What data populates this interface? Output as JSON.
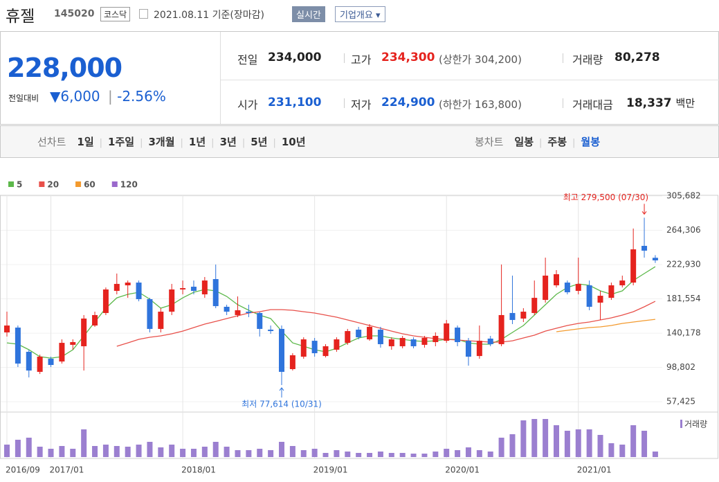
{
  "header": {
    "title": "휴젤",
    "code": "145020",
    "market": "코스닥",
    "date": "2021.08.11 기준(장마감)",
    "realtime": "실시간",
    "company": "기업개요"
  },
  "quote": {
    "price": "228,000",
    "change_label": "전일대비",
    "change": "6,000",
    "change_rate": "-2.56%",
    "rows": [
      [
        {
          "label": "전일",
          "value": "234,000"
        },
        {
          "label": "고가",
          "value": "234,300",
          "note_label": "(상한가",
          "note_value": "304,200)"
        },
        {
          "label": "거래량",
          "value": "80,278"
        }
      ],
      [
        {
          "label": "시가",
          "value": "231,100"
        },
        {
          "label": "저가",
          "value": "224,900",
          "note_label": "(하한가",
          "note_value": "163,800)"
        },
        {
          "label": "거래대금",
          "value": "18,337",
          "unit": "백만"
        }
      ]
    ]
  },
  "period_bar": {
    "line_label": "선차트",
    "line_periods": [
      "1일",
      "1주일",
      "3개월",
      "1년",
      "3년",
      "5년",
      "10년"
    ],
    "candle_label": "봉차트",
    "candle_periods": [
      "일봉",
      "주봉",
      "월봉"
    ]
  },
  "chart_data": {
    "type": "candlestick",
    "categories": [
      "2016/09",
      null,
      null,
      null,
      "2017/01",
      null,
      null,
      null,
      null,
      null,
      null,
      null,
      null,
      null,
      null,
      null,
      "2018/01",
      null,
      null,
      null,
      null,
      null,
      null,
      null,
      null,
      null,
      null,
      null,
      "2019/01",
      null,
      null,
      null,
      null,
      null,
      null,
      null,
      null,
      null,
      null,
      null,
      "2020/01",
      null,
      null,
      null,
      null,
      null,
      null,
      null,
      null,
      null,
      null,
      null,
      "2021/01",
      null,
      null,
      null,
      null,
      null,
      null,
      null
    ],
    "open": [
      141100,
      146900,
      117700,
      93500,
      109300,
      106000,
      126100,
      124400,
      149400,
      164500,
      191200,
      197900,
      201200,
      181200,
      145300,
      166100,
      192900,
      196200,
      187000,
      205400,
      172000,
      162000,
      166100,
      164500,
      144400,
      145300,
      96800,
      111800,
      131000,
      112600,
      120200,
      128500,
      144400,
      132700,
      144400,
      124400,
      124400,
      132700,
      126100,
      129400,
      131000,
      146900,
      131000,
      112600,
      133600,
      126900,
      164500,
      157800,
      164500,
      180300,
      197900,
      201200,
      191200,
      197900,
      177000,
      182800,
      197900,
      201200,
      245500,
      231100
    ],
    "high": [
      166100,
      149400,
      120200,
      114300,
      111800,
      132700,
      132700,
      162000,
      166100,
      195300,
      212100,
      203700,
      203700,
      182800,
      170300,
      199600,
      203700,
      203700,
      207900,
      223000,
      174500,
      184500,
      174500,
      166100,
      149400,
      149400,
      116000,
      135200,
      134400,
      126900,
      135200,
      145300,
      147800,
      151100,
      147800,
      135200,
      136900,
      135200,
      136900,
      141100,
      156100,
      149400,
      134400,
      149400,
      136900,
      223000,
      209600,
      170300,
      203700,
      231300,
      216300,
      203700,
      231300,
      203700,
      191200,
      201200,
      209600,
      266400,
      279500,
      234300
    ],
    "low": [
      136100,
      99300,
      86800,
      90900,
      99300,
      103500,
      120200,
      95100,
      147800,
      162000,
      187000,
      182800,
      178600,
      141100,
      141100,
      162000,
      187000,
      187000,
      182800,
      170300,
      162000,
      159500,
      159500,
      136100,
      139400,
      77614,
      95100,
      109300,
      111800,
      110900,
      117700,
      126100,
      132700,
      131000,
      122700,
      120200,
      121900,
      121900,
      122700,
      124400,
      128500,
      124400,
      101000,
      109300,
      124400,
      124400,
      151100,
      153600,
      162000,
      177000,
      195300,
      187000,
      187000,
      167800,
      156100,
      180300,
      195300,
      197900,
      231300,
      224900
    ],
    "close": [
      149400,
      103500,
      95100,
      111800,
      101800,
      128500,
      129400,
      157800,
      162000,
      192900,
      199600,
      201200,
      181200,
      145300,
      166100,
      192900,
      194500,
      191200,
      203700,
      172800,
      166100,
      167800,
      164500,
      145300,
      142700,
      93500,
      113500,
      132700,
      116000,
      124400,
      132700,
      142700,
      135200,
      147800,
      126900,
      132700,
      134400,
      124400,
      134400,
      136900,
      151900,
      129400,
      111800,
      131000,
      126900,
      162000,
      156100,
      166100,
      182800,
      209600,
      211300,
      189500,
      199600,
      172000,
      185300,
      197900,
      203700,
      241300,
      239700,
      228000
    ],
    "up_color": "#e5231e",
    "down_color": "#2f74dc",
    "ylim": [
      45000,
      306500
    ],
    "yticks": [
      {
        "value": 305682,
        "label": "305,682"
      },
      {
        "value": 264306,
        "label": "264,306"
      },
      {
        "value": 222930,
        "label": "222,930"
      },
      {
        "value": 181554,
        "label": "181,554"
      },
      {
        "value": 140178,
        "label": "140,178"
      },
      {
        "value": 98802,
        "label": "98,802"
      },
      {
        "value": 57425,
        "label": "57,425"
      }
    ],
    "grid": true,
    "series": [
      {
        "name": "5",
        "color": "#5cb84a",
        "values": [
          128500,
          126900,
          120200,
          111800,
          110100,
          111800,
          120200,
          136900,
          153600,
          170300,
          182800,
          187000,
          189500,
          181200,
          170300,
          174500,
          182800,
          189500,
          192900,
          191200,
          184500,
          174500,
          167800,
          162000,
          157800,
          142700,
          128500,
          124400,
          120200,
          117700,
          121900,
          128500,
          134400,
          136900,
          136900,
          134400,
          132700,
          131000,
          130200,
          131000,
          132700,
          132700,
          128500,
          126900,
          126900,
          132700,
          141100,
          149400,
          162000,
          174500,
          187000,
          195300,
          199600,
          197900,
          191200,
          187000,
          191200,
          203700,
          212100,
          220400
        ]
      },
      {
        "name": "20",
        "color": "#e8504a",
        "values": [
          null,
          null,
          null,
          null,
          null,
          null,
          null,
          null,
          null,
          null,
          124400,
          128500,
          132700,
          135200,
          136900,
          139400,
          142700,
          146900,
          151100,
          154400,
          157800,
          161100,
          164500,
          166100,
          168600,
          168600,
          167800,
          166100,
          164500,
          162000,
          159500,
          156100,
          152800,
          149400,
          146100,
          142700,
          139400,
          136900,
          135200,
          133600,
          132700,
          131900,
          131000,
          130200,
          129400,
          129400,
          131000,
          134400,
          137700,
          142700,
          146100,
          149400,
          151900,
          153600,
          156100,
          158600,
          162000,
          166100,
          172000,
          178600
        ]
      },
      {
        "name": "60",
        "color": "#f39a2e",
        "values": [
          null,
          null,
          null,
          null,
          null,
          null,
          null,
          null,
          null,
          null,
          null,
          null,
          null,
          null,
          null,
          null,
          null,
          null,
          null,
          null,
          null,
          null,
          null,
          null,
          null,
          null,
          null,
          null,
          null,
          null,
          null,
          null,
          null,
          null,
          null,
          null,
          null,
          null,
          null,
          null,
          null,
          null,
          null,
          null,
          null,
          null,
          null,
          null,
          null,
          null,
          141900,
          143600,
          145300,
          146900,
          147800,
          149400,
          151900,
          153600,
          155300,
          156900
        ]
      },
      {
        "name": "120",
        "color": "#9a68cc",
        "values": [
          null,
          null,
          null,
          null,
          null,
          null,
          null,
          null,
          null,
          null,
          null,
          null,
          null,
          null,
          null,
          null,
          null,
          null,
          null,
          null,
          null,
          null,
          null,
          null,
          null,
          null,
          null,
          null,
          null,
          null,
          null,
          null,
          null,
          null,
          null,
          null,
          null,
          null,
          null,
          null,
          null,
          null,
          null,
          null,
          null,
          null,
          null,
          null,
          null,
          null,
          null,
          null,
          null,
          null,
          null,
          null,
          null,
          null,
          null,
          null
        ]
      }
    ],
    "volume": {
      "name": "거래량",
      "color": "#9b7fd0",
      "values": [
        180000,
        250000,
        280000,
        150000,
        120000,
        160000,
        120000,
        400000,
        160000,
        180000,
        160000,
        150000,
        180000,
        220000,
        140000,
        180000,
        120000,
        120000,
        150000,
        220000,
        150000,
        100000,
        100000,
        120000,
        100000,
        220000,
        160000,
        100000,
        120000,
        60000,
        100000,
        80000,
        60000,
        60000,
        80000,
        60000,
        60000,
        50000,
        50000,
        80000,
        120000,
        100000,
        140000,
        100000,
        80000,
        280000,
        330000,
        530000,
        550000,
        550000,
        460000,
        380000,
        400000,
        400000,
        320000,
        200000,
        180000,
        460000,
        380000,
        80000
      ]
    },
    "annotations": [
      {
        "text": "최고 279,500 (07/30)",
        "value": 279500,
        "color": "#e5231e"
      },
      {
        "text": "최저 77,614 (10/31)",
        "value": 77614,
        "color": "#2f74dc"
      }
    ]
  }
}
